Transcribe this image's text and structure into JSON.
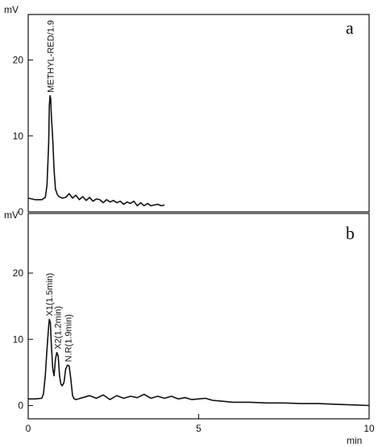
{
  "chart_data": [
    {
      "type": "line",
      "panel_label": "a",
      "ylabel": "mV",
      "ylim": [
        0,
        26
      ],
      "yticks": [
        0,
        10,
        20
      ],
      "xlim": [
        0,
        10
      ],
      "grid": false,
      "peak_annotations": [
        {
          "text": "METHYL-RED/1.9",
          "x": 0.65,
          "y": 15.3
        }
      ],
      "series": [
        {
          "x": [
            0,
            0.2,
            0.4,
            0.5,
            0.55,
            0.6,
            0.62,
            0.64,
            0.66,
            0.68,
            0.72,
            0.76,
            0.8,
            0.85,
            0.9,
            1.0,
            1.1,
            1.2,
            1.3,
            1.4,
            1.5,
            1.6,
            1.7,
            1.8,
            1.9,
            2.0,
            2.1,
            2.2,
            2.3,
            2.4,
            2.5,
            2.6,
            2.7,
            2.8,
            2.9,
            3.0,
            3.1,
            3.2,
            3.3,
            3.4,
            3.5,
            3.6,
            3.7,
            3.8,
            3.9,
            4.0
          ],
          "values": [
            1.8,
            1.6,
            1.6,
            1.9,
            3.5,
            9.0,
            14.0,
            15.3,
            14.9,
            12.5,
            9.5,
            5.5,
            3.0,
            2.3,
            2.0,
            1.8,
            1.9,
            2.4,
            1.8,
            2.2,
            1.6,
            2.0,
            1.5,
            1.9,
            1.4,
            1.7,
            1.6,
            1.2,
            1.6,
            1.3,
            1.5,
            1.2,
            1.4,
            1.0,
            1.3,
            1.1,
            1.4,
            0.8,
            1.2,
            0.8,
            1.1,
            0.8,
            0.9,
            1.0,
            0.8,
            0.9
          ]
        }
      ]
    },
    {
      "type": "line",
      "panel_label": "b",
      "ylabel": "mV",
      "xlabel": "min",
      "ylim": [
        -2,
        29
      ],
      "yticks": [
        0,
        10,
        20
      ],
      "xlim": [
        0,
        10
      ],
      "xticks": [
        0,
        5,
        10
      ],
      "grid": false,
      "peak_annotations": [
        {
          "text": "X1(1.5min)",
          "x": 0.62,
          "y": 13.0
        },
        {
          "text": "X2(1.2min)",
          "x": 0.86,
          "y": 8.0
        },
        {
          "text": "N.R(1.9min)",
          "x": 1.17,
          "y": 6.1
        }
      ],
      "series": [
        {
          "x": [
            0,
            0.2,
            0.4,
            0.45,
            0.5,
            0.55,
            0.6,
            0.62,
            0.65,
            0.68,
            0.72,
            0.76,
            0.8,
            0.84,
            0.88,
            0.92,
            0.96,
            1.0,
            1.05,
            1.1,
            1.15,
            1.2,
            1.25,
            1.3,
            1.35,
            1.4,
            1.6,
            1.8,
            2.0,
            2.2,
            2.4,
            2.6,
            2.8,
            3.0,
            3.2,
            3.4,
            3.6,
            3.8,
            4.0,
            4.2,
            4.4,
            4.6,
            4.8,
            5.0,
            5.2,
            5.4,
            5.6,
            5.8,
            6.0,
            6.5,
            7.0,
            7.5,
            8.0,
            8.5,
            9.0,
            9.5,
            10.0
          ],
          "values": [
            1.0,
            1.0,
            1.1,
            1.8,
            4.5,
            8.5,
            12.0,
            13.0,
            12.5,
            9.0,
            5.5,
            4.5,
            7.0,
            8.0,
            7.5,
            4.5,
            3.2,
            3.0,
            3.5,
            5.5,
            6.1,
            6.0,
            4.0,
            1.5,
            1.0,
            0.9,
            1.2,
            1.5,
            1.1,
            1.6,
            0.9,
            1.5,
            1.1,
            1.4,
            1.2,
            1.7,
            1.1,
            1.4,
            1.1,
            1.4,
            1.0,
            1.2,
            0.9,
            1.0,
            1.1,
            0.8,
            0.7,
            0.6,
            0.5,
            0.5,
            0.4,
            0.4,
            0.3,
            0.3,
            0.2,
            0.1,
            0.0
          ]
        }
      ]
    }
  ]
}
